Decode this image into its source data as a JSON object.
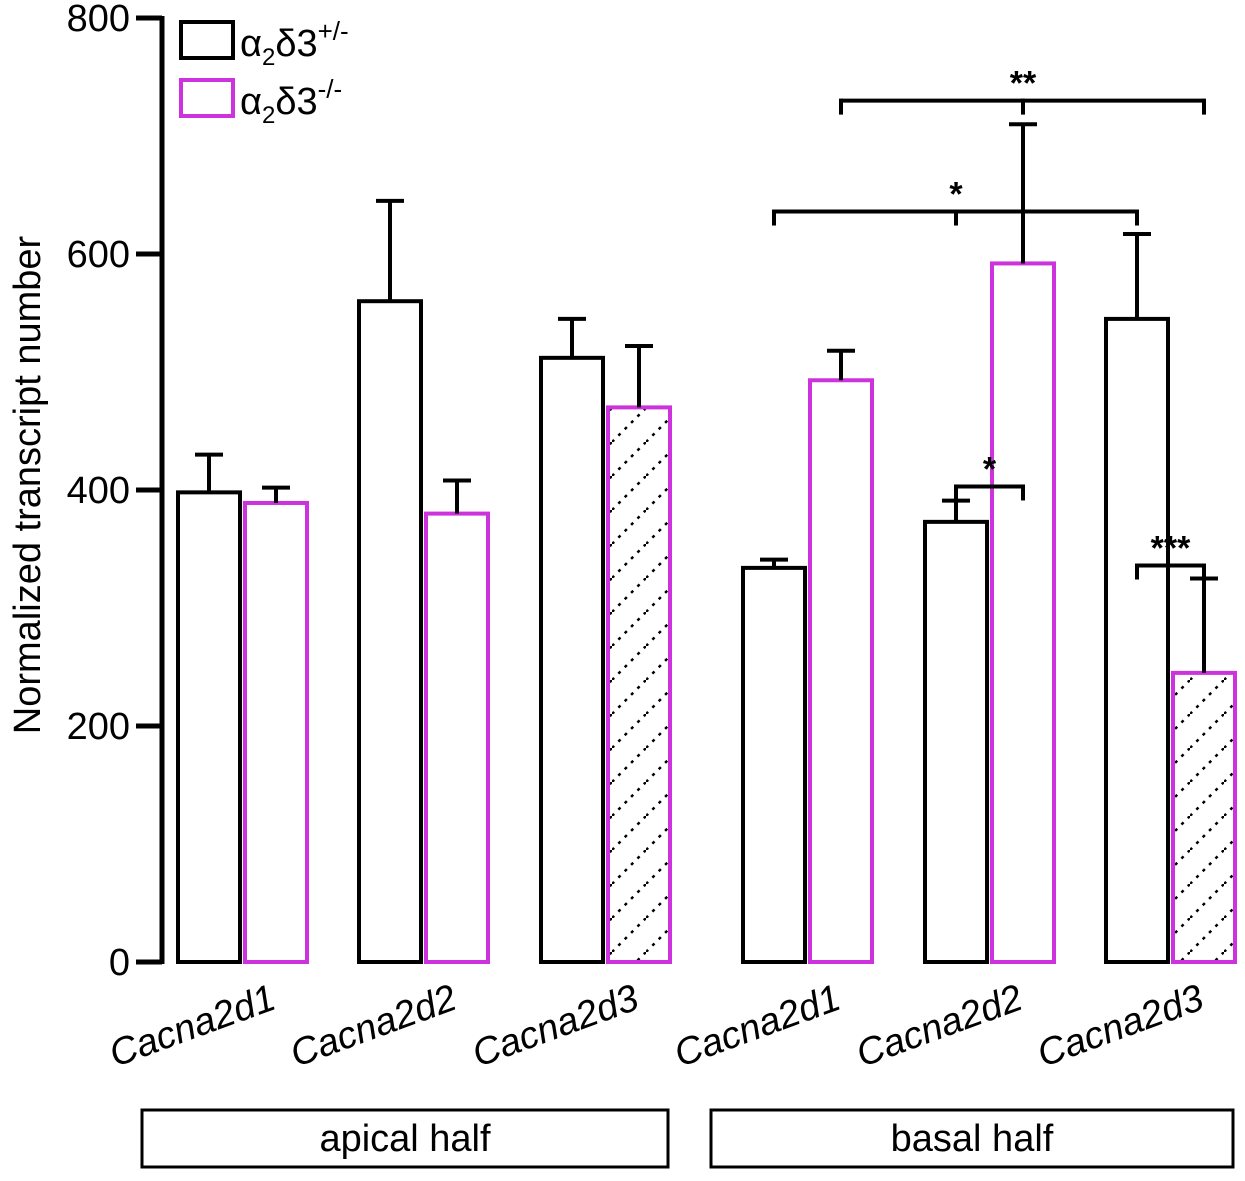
{
  "chart_data": {
    "type": "bar",
    "ylabel": "Normalized transcript number",
    "ylim": [
      0,
      800
    ],
    "yticks": [
      0,
      200,
      400,
      600,
      800
    ],
    "groups": [
      {
        "label": "apical half",
        "categories": [
          "Cacna2d1",
          "Cacna2d2",
          "Cacna2d3"
        ]
      },
      {
        "label": "basal half",
        "categories": [
          "Cacna2d1",
          "Cacna2d2",
          "Cacna2d3"
        ]
      }
    ],
    "categories": [
      "Cacna2d1",
      "Cacna2d2",
      "Cacna2d3",
      "Cacna2d1",
      "Cacna2d2",
      "Cacna2d3"
    ],
    "series": [
      {
        "name": "α2δ3+/-",
        "name_base": "α",
        "name_sub": "2",
        "name_mid": "δ3",
        "name_sup": "+/-",
        "color": "#000000",
        "values": [
          398,
          560,
          512,
          334,
          373,
          545
        ],
        "errors": [
          32,
          85,
          33,
          7,
          18,
          72
        ],
        "hatched": [
          false,
          false,
          false,
          false,
          false,
          false
        ]
      },
      {
        "name": "α2δ3-/-",
        "name_base": "α",
        "name_sub": "2",
        "name_mid": "δ3",
        "name_sup": "-/-",
        "color": "#cc33dd",
        "values": [
          389,
          380,
          470,
          493,
          592,
          245
        ],
        "errors": [
          13,
          28,
          52,
          25,
          118,
          80
        ],
        "hatched": [
          false,
          false,
          true,
          false,
          false,
          true
        ]
      }
    ],
    "significance": [
      {
        "label": "**",
        "from": "basal Cacna2d1 α2δ3-/-",
        "to": "basal Cacna2d3 α2δ3-/-",
        "center": "basal Cacna2d2 α2δ3-/-",
        "level": 730
      },
      {
        "label": "*",
        "from": "basal Cacna2d1 α2δ3+/-",
        "to": "basal Cacna2d3 α2δ3+/-",
        "center": "basal Cacna2d2 α2δ3+/-",
        "level": 636
      },
      {
        "label": "*",
        "from": "basal Cacna2d2 α2δ3+/-",
        "to": "basal Cacna2d2 α2δ3-/-",
        "level": 403
      },
      {
        "label": "***",
        "from": "basal Cacna2d3 α2δ3+/-",
        "to": "basal Cacna2d3 α2δ3-/-",
        "level": 336
      }
    ]
  }
}
